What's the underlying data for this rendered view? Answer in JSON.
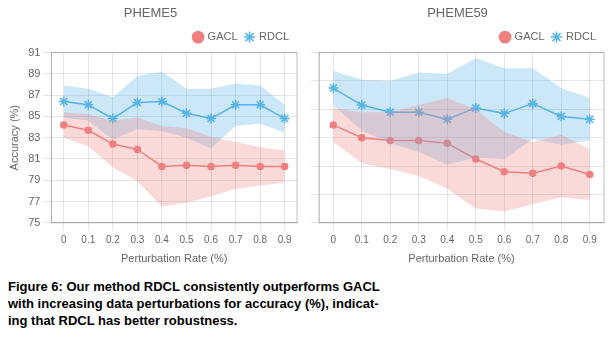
{
  "chart_data": [
    {
      "type": "line",
      "title": "PHEME5",
      "x_label": "Perturbation Rate (%)",
      "y_label": "Accuracy (%)",
      "x": [
        0,
        0.1,
        0.2,
        0.3,
        0.4,
        0.5,
        0.6,
        0.7,
        0.8,
        0.9
      ],
      "xlim": [
        -0.05,
        0.95
      ],
      "xticks": [
        0,
        0.1,
        0.2,
        0.3,
        0.4,
        0.5,
        0.6,
        0.7,
        0.8,
        0.9
      ],
      "ylim": [
        75,
        91
      ],
      "yticks": [
        75,
        77,
        79,
        81,
        83,
        85,
        87,
        89,
        91
      ],
      "grid": true,
      "legend": "upper right",
      "series": [
        {
          "name": "GACL",
          "color": "#F08080",
          "marker": "circle",
          "values": [
            84.2,
            83.7,
            82.4,
            81.9,
            80.3,
            80.4,
            80.3,
            80.4,
            80.3,
            80.3
          ],
          "lower": [
            83.0,
            82.2,
            80.2,
            78.9,
            76.5,
            76.9,
            77.5,
            78.2,
            78.5,
            78.8
          ],
          "upper": [
            85.4,
            85.2,
            84.6,
            84.9,
            84.1,
            83.9,
            83.1,
            82.6,
            82.1,
            81.8
          ]
        },
        {
          "name": "RDCL",
          "color": "#56B4E9",
          "marker": "star",
          "values": [
            86.4,
            86.1,
            84.8,
            86.3,
            86.4,
            85.3,
            84.8,
            86.1,
            86.1,
            84.8
          ],
          "lower": [
            84.9,
            84.6,
            82.8,
            83.8,
            83.6,
            83.0,
            82.0,
            84.1,
            84.3,
            83.5
          ],
          "upper": [
            87.9,
            87.6,
            86.8,
            88.8,
            89.2,
            87.6,
            87.6,
            88.1,
            87.9,
            86.1
          ]
        }
      ]
    },
    {
      "type": "line",
      "title": "PHEME59",
      "x_label": "Perturbation Rate (%)",
      "x": [
        0,
        0.1,
        0.2,
        0.3,
        0.4,
        0.5,
        0.6,
        0.7,
        0.8,
        0.9
      ],
      "xlim": [
        -0.05,
        0.95
      ],
      "xticks": [
        0,
        0.1,
        0.2,
        0.3,
        0.4,
        0.5,
        0.6,
        0.7,
        0.8,
        0.9
      ],
      "ylim": [
        77,
        89
      ],
      "yticks": [
        77,
        79,
        81,
        83,
        85,
        87,
        89
      ],
      "grid": true,
      "legend": "upper right",
      "tick_labels": "x",
      "series": [
        {
          "name": "GACL",
          "color": "#F08080",
          "marker": "circle",
          "values": [
            83.9,
            83.0,
            82.8,
            82.8,
            82.6,
            81.5,
            80.6,
            80.5,
            81.0,
            80.4
          ],
          "lower": [
            82.7,
            81.2,
            80.8,
            80.3,
            79.4,
            78.0,
            77.8,
            78.3,
            78.8,
            78.6
          ],
          "upper": [
            85.1,
            84.8,
            84.8,
            85.3,
            85.8,
            85.0,
            83.4,
            82.7,
            83.2,
            82.2
          ]
        },
        {
          "name": "RDCL",
          "color": "#56B4E9",
          "marker": "star",
          "values": [
            86.5,
            85.3,
            84.8,
            84.8,
            84.3,
            85.1,
            84.7,
            85.4,
            84.5,
            84.3
          ],
          "lower": [
            85.3,
            83.5,
            82.6,
            82.0,
            81.1,
            81.6,
            81.5,
            82.9,
            82.5,
            82.8
          ],
          "upper": [
            87.7,
            87.1,
            87.0,
            87.6,
            87.5,
            88.6,
            87.9,
            87.9,
            86.5,
            85.8
          ]
        }
      ]
    }
  ],
  "caption": [
    "Figure 6: Our method RDCL consistently outperforms GACL",
    "with increasing data perturbations for accuracy (%), indicat-",
    "ing that RDCL has better robustness."
  ]
}
